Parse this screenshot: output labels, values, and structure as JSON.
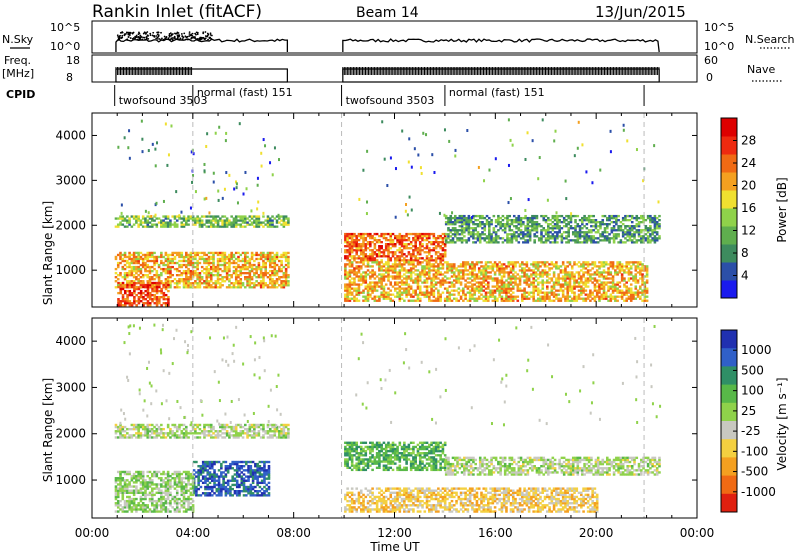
{
  "header": {
    "title": "Rankin Inlet (fitACF)",
    "beam": "Beam 14",
    "date": "13/Jun/2015"
  },
  "top_panels": {
    "nsky_label": "N.Sky",
    "nsky_ticks": [
      "10^5",
      "10^0"
    ],
    "nsearch_label": "N.Search",
    "nsearch_ticks": [
      "10^5",
      "10^0"
    ],
    "freq_label_1": "Freq.",
    "freq_label_2": "[MHz]",
    "freq_ticks": [
      "18",
      "8"
    ],
    "nave_label": "Nave",
    "nave_ticks": [
      "60",
      "0"
    ],
    "cpid_label": "CPID",
    "cpid_segments": [
      {
        "label": "twofsound 3503",
        "start": 0.9,
        "end": 4.0
      },
      {
        "label": "normal (fast)  151",
        "start": 4.0,
        "end": 7.8
      },
      {
        "label": "twofsound 3503",
        "start": 9.9,
        "end": 14.0
      },
      {
        "label": "normal (fast)  151",
        "start": 14.0,
        "end": 21.9
      }
    ]
  },
  "chart_data": [
    {
      "type": "heatmap",
      "panel": "power",
      "ylabel": "Slant Range [km]",
      "xlim": [
        0,
        24
      ],
      "ylim": [
        180,
        4500
      ],
      "yticks": [
        "1000",
        "2000",
        "3000",
        "4000"
      ],
      "colorbar_label": "Power [dB]",
      "colorbar_ticks": [
        "4",
        "8",
        "12",
        "16",
        "20",
        "24",
        "28"
      ],
      "colors": [
        "#1a1aee",
        "#2b4fa8",
        "#3d8b5e",
        "#5fae4e",
        "#8fd24a",
        "#f0e030",
        "#f4a020",
        "#f06a14",
        "#ee2a10",
        "#dd0000"
      ],
      "data_gaps_hours": [
        [
          7.8,
          9.9
        ]
      ],
      "echo_bands": [
        {
          "start": 0.9,
          "end": 7.8,
          "r_min": 1950,
          "r_max": 2200,
          "value_db": 12
        },
        {
          "start": 0.9,
          "end": 7.8,
          "r_min": 600,
          "r_max": 1400,
          "value_db": 20
        },
        {
          "start": 1.0,
          "end": 3.0,
          "r_min": 200,
          "r_max": 700,
          "value_db": 26
        },
        {
          "start": 10.0,
          "end": 14.0,
          "r_min": 1200,
          "r_max": 1800,
          "value_db": 24
        },
        {
          "start": 10.0,
          "end": 22.0,
          "r_min": 300,
          "r_max": 1200,
          "value_db": 20
        },
        {
          "start": 14.0,
          "end": 22.5,
          "r_min": 1600,
          "r_max": 2200,
          "value_db": 10
        }
      ]
    },
    {
      "type": "heatmap",
      "panel": "velocity",
      "xlabel": "Time UT",
      "ylabel": "Slant Range [km]",
      "xlim": [
        0,
        24
      ],
      "ylim": [
        180,
        4500
      ],
      "xticks": [
        "00:00",
        "04:00",
        "08:00",
        "12:00",
        "16:00",
        "20:00",
        "00:00"
      ],
      "yticks": [
        "1000",
        "2000",
        "3000",
        "4000"
      ],
      "colorbar_label": "Velocity [m s⁻¹]",
      "colorbar_ticks": [
        "1000",
        "500",
        "100",
        "25",
        "-25",
        "-100",
        "-500",
        "-1000"
      ],
      "colors": [
        "#2030b0",
        "#3060c8",
        "#2f8f66",
        "#58b848",
        "#8fd24a",
        "#c8c8c0",
        "#f4d040",
        "#f4a020",
        "#f06a14",
        "#e02010"
      ],
      "data_gaps_hours": [
        [
          7.8,
          9.9
        ]
      ],
      "echo_bands": [
        {
          "start": 0.9,
          "end": 7.8,
          "r_min": 1900,
          "r_max": 2200,
          "value_ms": 0
        },
        {
          "start": 4.0,
          "end": 7.0,
          "r_min": 650,
          "r_max": 1400,
          "value_ms": 700
        },
        {
          "start": 0.9,
          "end": 4.0,
          "r_min": 300,
          "r_max": 1200,
          "value_ms": 80
        },
        {
          "start": 10.0,
          "end": 14.0,
          "r_min": 1200,
          "r_max": 1800,
          "value_ms": 300
        },
        {
          "start": 10.0,
          "end": 20.0,
          "r_min": 300,
          "r_max": 800,
          "value_ms": -300
        },
        {
          "start": 14.0,
          "end": 22.5,
          "r_min": 1100,
          "r_max": 1500,
          "value_ms": 0
        }
      ]
    }
  ]
}
